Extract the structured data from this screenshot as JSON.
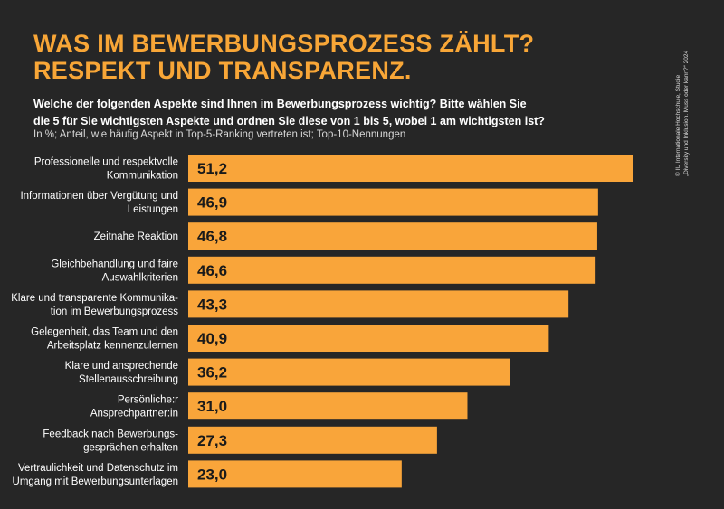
{
  "title_line1": "WAS IM BEWERBUNGSPROZESS ZÄHLT?",
  "title_line2": "RESPEKT UND TRANSPARENZ.",
  "question_line1": "Welche der folgenden Aspekte sind Ihnen im Bewerbungsprozess wichtig? Bitte wählen Sie",
  "question_line2": "die 5 für Sie wichtigsten Aspekte und ordnen Sie diese von 1 bis 5, wobei 1 am wichtigsten ist?",
  "note": "In %; Anteil, wie häufig Aspekt in Top-5-Ranking vertreten ist; Top-10-Nennungen",
  "credit_line1": "© IU Internationale Hochschule, Studie",
  "credit_line2": "„Diversity und Inklusion. Muss oder kann?“ 2024",
  "colors": {
    "background": "#262626",
    "bar": "#f9a53a",
    "title": "#f8a637"
  },
  "chart_data": {
    "type": "bar",
    "orientation": "horizontal",
    "categories": [
      [
        "Professionelle und respektvolle",
        "Kommunikation"
      ],
      [
        "Informationen über Vergütung und",
        "Leistungen"
      ],
      [
        "Zeitnahe Reaktion"
      ],
      [
        "Gleichbehandlung und faire",
        "Auswahlkriterien"
      ],
      [
        "Klare und transparente Kommunika-",
        "tion im Bewerbungsprozess"
      ],
      [
        "Gelegenheit, das Team und den",
        "Arbeitsplatz kennenzulernen"
      ],
      [
        "Klare und ansprechende",
        "Stellenausschreibung"
      ],
      [
        "Persönliche:r",
        "Ansprechpartner:in"
      ],
      [
        "Feedback nach Bewerbungs-",
        "gesprächen erhalten"
      ],
      [
        "Vertraulichkeit und Datenschutz im",
        "Umgang mit Bewerbungsunterlagen"
      ]
    ],
    "values": [
      51.2,
      46.9,
      46.8,
      46.6,
      43.3,
      40.9,
      36.2,
      31.0,
      27.3,
      23.0
    ],
    "value_labels": [
      "51,2",
      "46,9",
      "46,8",
      "46,6",
      "43,3",
      "40,9",
      "36,2",
      "31,0",
      "27,3",
      "23,0"
    ],
    "unit": "%",
    "grid": false,
    "legend": "none"
  }
}
